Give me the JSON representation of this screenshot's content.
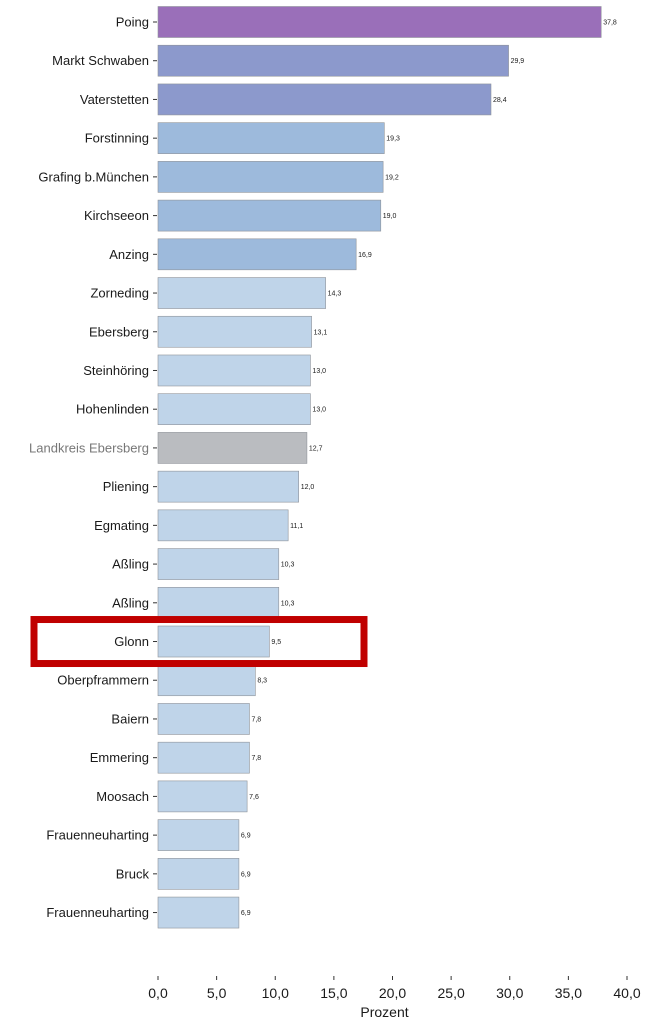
{
  "chart_data": {
    "type": "bar",
    "orientation": "horizontal",
    "xlabel": "Prozent",
    "xlim": [
      0,
      40
    ],
    "xticks": [
      "0,0",
      "5,0",
      "10,0",
      "15,0",
      "20,0",
      "25,0",
      "30,0",
      "35,0",
      "40,0"
    ],
    "grid": false,
    "categories": [
      "Poing",
      "Markt Schwaben",
      "Vaterstetten",
      "Forstinning",
      "Grafing b.München",
      "Kirchseeon",
      "Anzing",
      "Zorneding",
      "Ebersberg",
      "Steinhöring",
      "Hohenlinden",
      "Landkreis Ebersberg",
      "Pliening",
      "Egmating",
      "Aßling",
      "Aßling",
      "Glonn",
      "Oberpframmern",
      "Baiern",
      "Emmering",
      "Moosach",
      "Frauenneuharting",
      "Bruck",
      "Frauenneuharting"
    ],
    "values": [
      37.8,
      29.9,
      28.4,
      19.3,
      19.2,
      19.0,
      16.9,
      14.3,
      13.1,
      13.0,
      13.0,
      12.7,
      12.0,
      11.1,
      10.3,
      10.3,
      9.5,
      8.3,
      7.8,
      7.8,
      7.6,
      6.9,
      6.9,
      6.9
    ],
    "value_labels": [
      "37,8",
      "29,9",
      "28,4",
      "19,3",
      "19,2",
      "19,0",
      "16,9",
      "14,3",
      "13,1",
      "13,0",
      "13,0",
      "12,7",
      "12,0",
      "11,1",
      "10,3",
      "10,3",
      "9,5",
      "8,3",
      "7,8",
      "7,8",
      "7,6",
      "6,9",
      "6,9",
      "6,9"
    ],
    "bar_colors": [
      "#9a6fb9",
      "#8c99cc",
      "#8c99cc",
      "#9dbadc",
      "#9dbadc",
      "#9dbadc",
      "#9dbadc",
      "#bfd4e9",
      "#bfd4e9",
      "#bfd4e9",
      "#bfd4e9",
      "#babcc0",
      "#bfd4e9",
      "#bfd4e9",
      "#bfd4e9",
      "#bfd4e9",
      "#bfd4e9",
      "#bfd4e9",
      "#bfd4e9",
      "#bfd4e9",
      "#bfd4e9",
      "#bfd4e9",
      "#bfd4e9",
      "#bfd4e9"
    ],
    "muted_label_category": "Landkreis Ebersberg",
    "highlighted_category": "Glonn",
    "highlight_color": "#c00000"
  }
}
